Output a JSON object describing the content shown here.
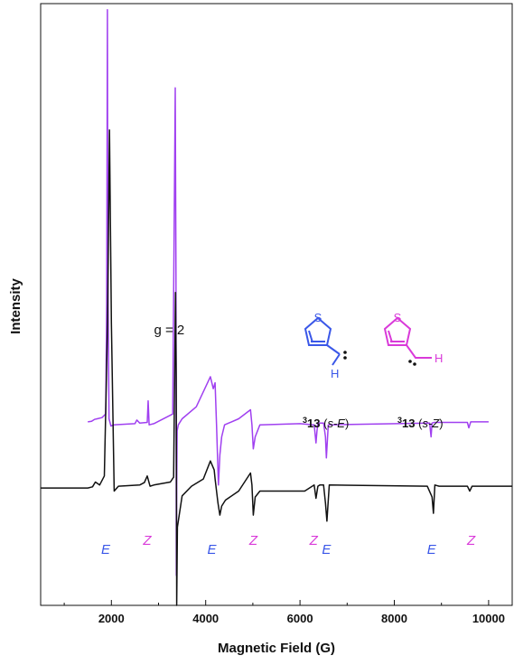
{
  "chart_data": {
    "type": "line",
    "xlabel": "Magnetic Field (G)",
    "ylabel": "Intensity",
    "xlim": [
      500,
      10500
    ],
    "xticks": [
      "2000",
      "4000",
      "6000",
      "8000",
      "10000"
    ],
    "ylim": [
      0,
      1
    ],
    "grid": false,
    "annotations": {
      "g_label": "g = 2",
      "g_field": 3380
    },
    "colors": {
      "top_series": "#a040f0",
      "bottom_series": "#111111",
      "E_label": "#3a57e8",
      "Z_label": "#d93ad9"
    },
    "series": [
      {
        "baseline": 0.305,
        "x": [
          1500,
          1580,
          1640,
          1700,
          1800,
          1880,
          1900,
          1915,
          1925,
          1950,
          1990,
          2050,
          2500,
          2540,
          2600,
          2760,
          2780,
          2800,
          2900,
          3300,
          3355,
          3370,
          3378,
          3385,
          3395,
          3420,
          3500,
          3800,
          4100,
          4160,
          4200,
          4230,
          4270,
          4300,
          4340,
          4400,
          4700,
          4950,
          4980,
          5010,
          5050,
          5150,
          6000,
          6300,
          6340,
          6360,
          6380,
          6500,
          6540,
          6560,
          6600,
          8750,
          8780,
          8800,
          8850,
          9550,
          9580,
          9620,
          10000
        ],
        "values": [
          0.305,
          0.306,
          0.309,
          0.31,
          0.312,
          0.318,
          0.5,
          0.99,
          0.55,
          0.31,
          0.298,
          0.3,
          0.302,
          0.308,
          0.303,
          0.304,
          0.34,
          0.3,
          0.302,
          0.318,
          0.86,
          0.55,
          0.05,
          0.2,
          0.29,
          0.3,
          0.31,
          0.33,
          0.38,
          0.36,
          0.37,
          0.3,
          0.2,
          0.25,
          0.28,
          0.3,
          0.31,
          0.325,
          0.3,
          0.26,
          0.28,
          0.3,
          0.302,
          0.3,
          0.27,
          0.29,
          0.303,
          0.303,
          0.28,
          0.245,
          0.3,
          0.303,
          0.28,
          0.303,
          0.304,
          0.304,
          0.295,
          0.305,
          0.305
        ]
      },
      {
        "baseline": 0.195,
        "x": [
          500,
          1500,
          1600,
          1660,
          1750,
          1850,
          1920,
          1960,
          2000,
          2060,
          2150,
          2600,
          2700,
          2760,
          2820,
          2900,
          3250,
          3320,
          3360,
          3375,
          3385,
          3400,
          3500,
          3700,
          3950,
          4100,
          4180,
          4200,
          4260,
          4300,
          4340,
          4420,
          4700,
          4950,
          4980,
          5010,
          5050,
          5150,
          6100,
          6300,
          6340,
          6380,
          6420,
          6500,
          6540,
          6570,
          6620,
          8700,
          8800,
          8830,
          8860,
          8950,
          9550,
          9600,
          9650,
          10000,
          10500
        ],
        "values": [
          0.195,
          0.195,
          0.197,
          0.205,
          0.2,
          0.215,
          0.47,
          0.79,
          0.47,
          0.19,
          0.198,
          0.2,
          0.204,
          0.215,
          0.198,
          0.2,
          0.205,
          0.213,
          0.52,
          0.38,
          0.0,
          0.13,
          0.182,
          0.198,
          0.21,
          0.24,
          0.225,
          0.21,
          0.17,
          0.15,
          0.165,
          0.175,
          0.19,
          0.22,
          0.2,
          0.15,
          0.18,
          0.19,
          0.19,
          0.2,
          0.178,
          0.198,
          0.2,
          0.2,
          0.17,
          0.14,
          0.2,
          0.198,
          0.18,
          0.153,
          0.2,
          0.198,
          0.198,
          0.19,
          0.198,
          0.198,
          0.198
        ]
      }
    ],
    "markers": [
      {
        "text": "E",
        "field": 1880,
        "kind": "E"
      },
      {
        "text": "Z",
        "field": 2760,
        "kind": "Z"
      },
      {
        "text": "E",
        "field": 4130,
        "kind": "E"
      },
      {
        "text": "Z",
        "field": 5010,
        "kind": "Z"
      },
      {
        "text": "Z",
        "field": 6290,
        "kind": "Z"
      },
      {
        "text": "E",
        "field": 6560,
        "kind": "E"
      },
      {
        "text": "E",
        "field": 8790,
        "kind": "E"
      },
      {
        "text": "Z",
        "field": 9630,
        "kind": "Z"
      }
    ],
    "structures": [
      {
        "hetero_atom": "S",
        "h_atom": "H",
        "label_prefix": "3",
        "label_id": "13",
        "label_open": " (",
        "label_italic": "s-E",
        "label_close": ")",
        "color": "#3a57e8"
      },
      {
        "hetero_atom": "S",
        "h_atom": "H",
        "label_prefix": "3",
        "label_id": "13",
        "label_open": " (",
        "label_italic": "s-Z",
        "label_close": ")",
        "color": "#d93ad9"
      }
    ]
  }
}
